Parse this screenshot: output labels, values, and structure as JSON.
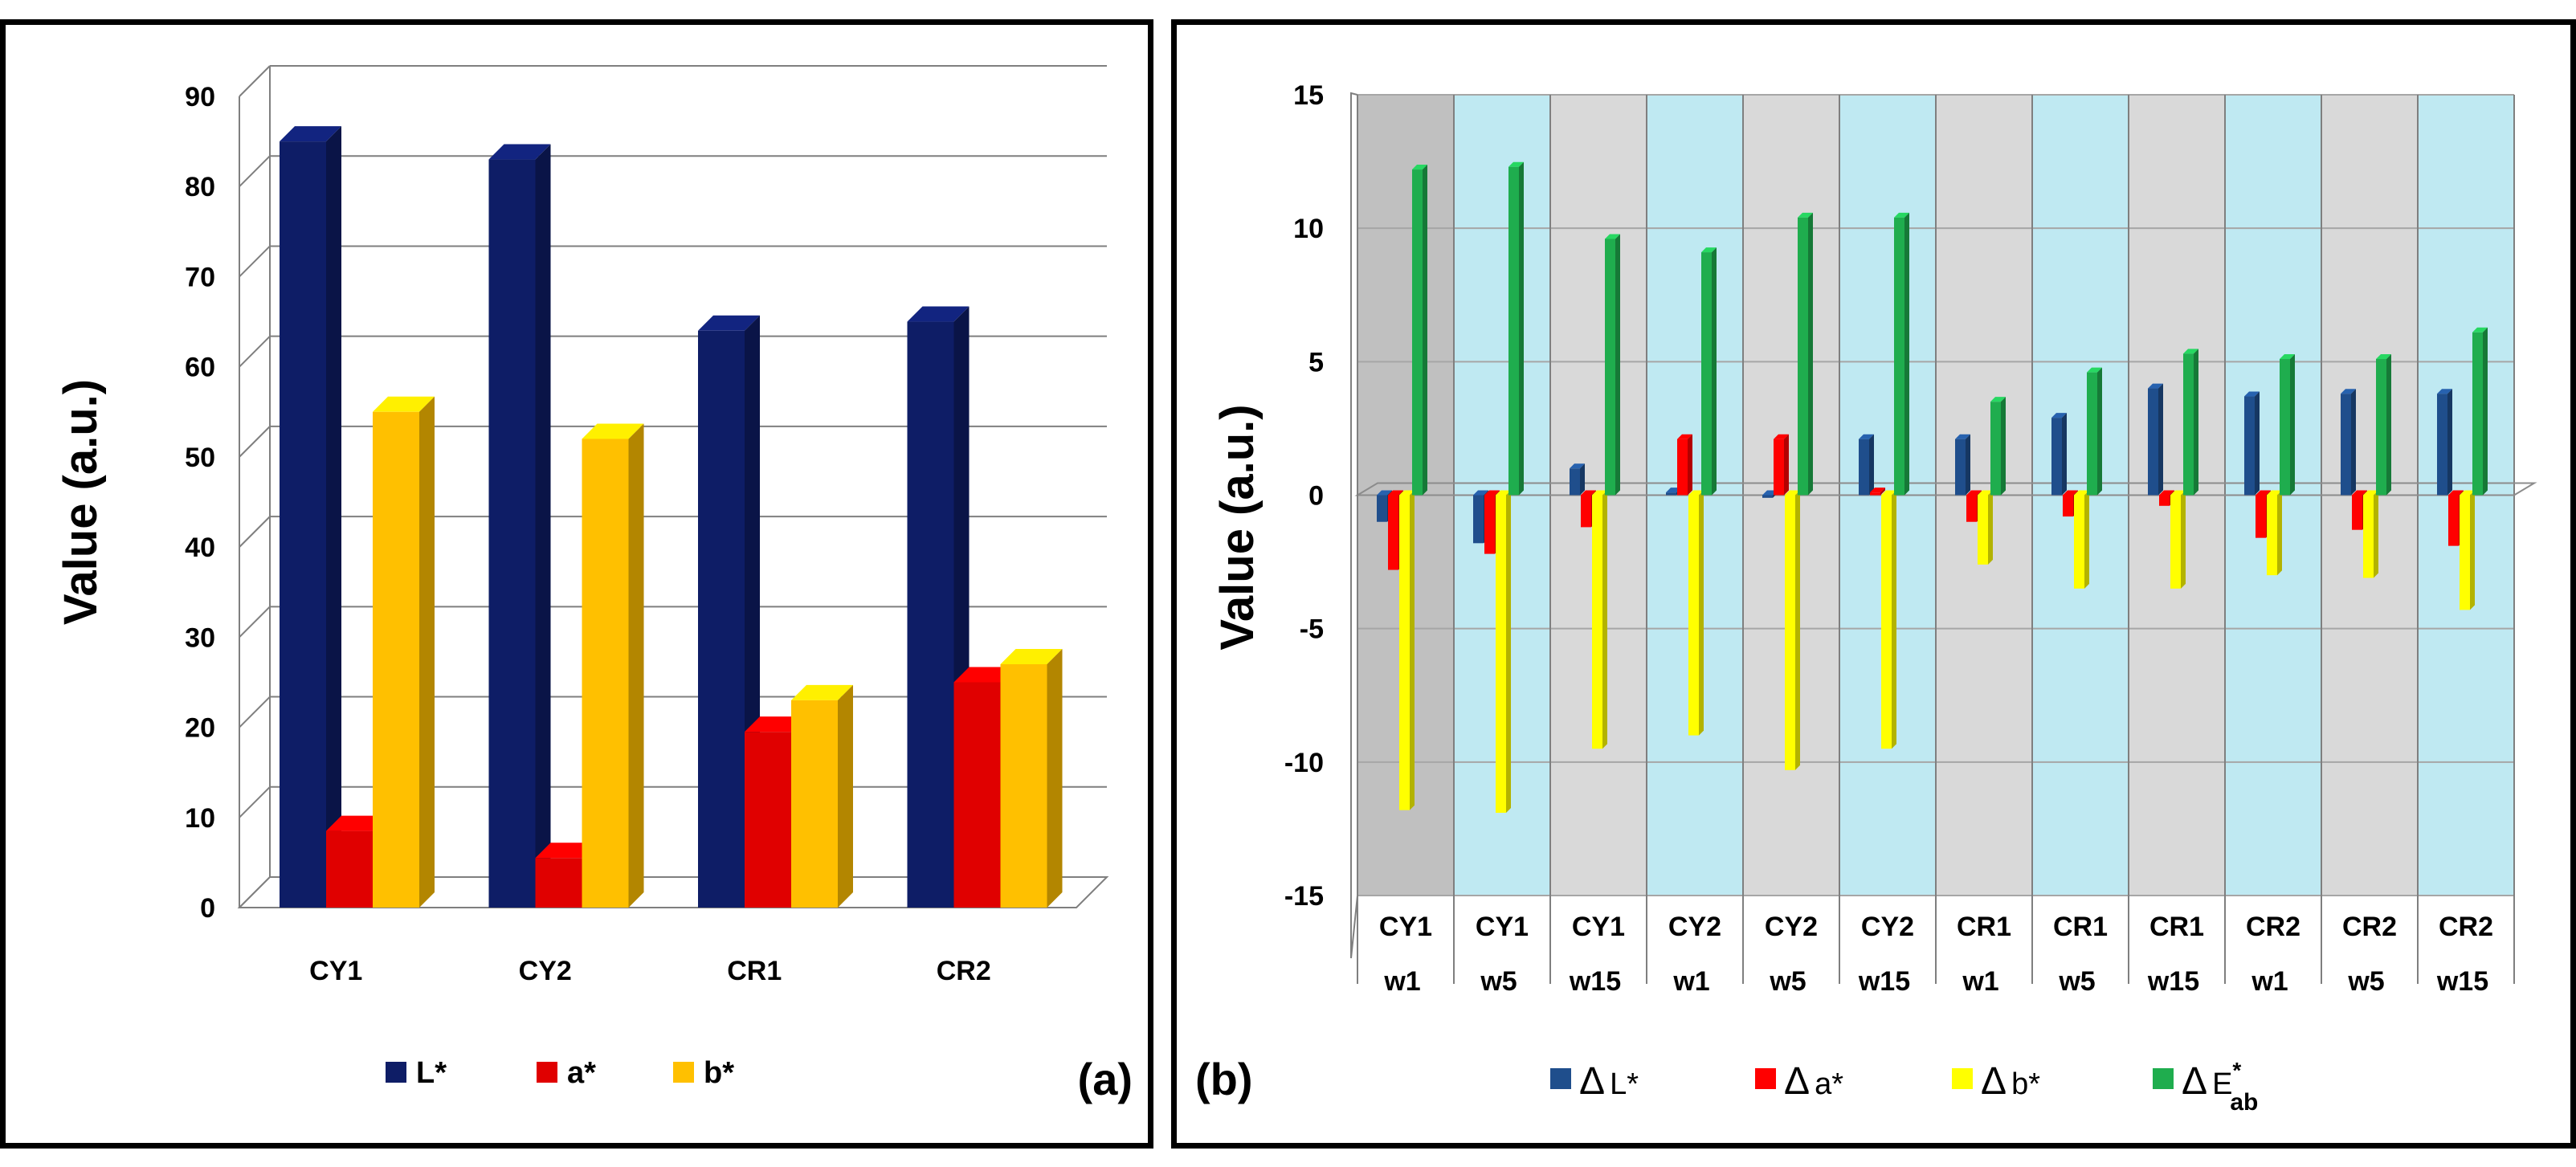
{
  "chart_data": [
    {
      "id": "a",
      "type": "bar",
      "panel_label": "(a)",
      "title": "",
      "xlabel": "",
      "ylabel": "Value (a.u.)",
      "ylim": [
        0,
        90
      ],
      "yticks": [
        0,
        10,
        20,
        30,
        40,
        50,
        60,
        70,
        80,
        90
      ],
      "categories": [
        "CY1",
        "CY2",
        "CR1",
        "CR2"
      ],
      "series": [
        {
          "name": "L*",
          "color": "#0e1d66",
          "values": [
            85,
            83,
            64,
            65
          ]
        },
        {
          "name": "a*",
          "color": "#e00000",
          "values": [
            8.5,
            5.5,
            19.5,
            25
          ]
        },
        {
          "name": "b*",
          "color": "#ffc000",
          "values": [
            55,
            52,
            23,
            27
          ]
        }
      ],
      "legend": "bottom",
      "grid": true
    },
    {
      "id": "b",
      "type": "bar",
      "panel_label": "(b)",
      "title": "",
      "xlabel": "",
      "ylabel": "Value (a.u.)",
      "ylim": [
        -15,
        15
      ],
      "yticks": [
        15,
        10,
        5,
        0,
        -5,
        -10,
        -15
      ],
      "categories_top": [
        "CY1",
        "CY1",
        "CY1",
        "CY2",
        "CY2",
        "CY2",
        "CR1",
        "CR1",
        "CR1",
        "CR2",
        "CR2",
        "CR2"
      ],
      "categories_bottom": [
        "w1",
        "w5",
        "w15",
        "w1",
        "w5",
        "w15",
        "w1",
        "w5",
        "w15",
        "w1",
        "w5",
        "w15"
      ],
      "band_colors": [
        "#c0c0c0",
        "#bfe9f2",
        "#d9d9d9",
        "#bfe9f2",
        "#d9d9d9",
        "#bfe9f2",
        "#d9d9d9",
        "#bfe9f2",
        "#d9d9d9",
        "#bfe9f2",
        "#d9d9d9",
        "#bfe9f2"
      ],
      "series": [
        {
          "name": "ΔL*",
          "delta": "Δ",
          "label": "L*",
          "color": "#1f4e8c",
          "values": [
            -1,
            -1.8,
            1,
            0.1,
            -0.1,
            2.1,
            2.1,
            2.9,
            4,
            3.7,
            3.8,
            3.8
          ]
        },
        {
          "name": "Δa*",
          "delta": "Δ",
          "label": "a*",
          "color": "#ff0000",
          "values": [
            -2.8,
            -2.2,
            -1.2,
            2.1,
            2.1,
            0.1,
            -1,
            -0.8,
            -0.4,
            -1.6,
            -1.3,
            -1.9
          ]
        },
        {
          "name": "Δb*",
          "delta": "Δ",
          "label": "b*",
          "color": "#ffff00",
          "values": [
            -11.8,
            -11.9,
            -9.5,
            -9,
            -10.3,
            -9.5,
            -2.6,
            -3.5,
            -3.5,
            -3,
            -3.1,
            -4.3
          ]
        },
        {
          "name": "ΔE*ab",
          "delta": "Δ",
          "label": "E",
          "sup": "*",
          "sub": "ab",
          "color": "#1fad4e",
          "values": [
            12.2,
            12.3,
            9.6,
            9.1,
            10.4,
            10.4,
            3.5,
            4.6,
            5.3,
            5.1,
            5.1,
            6.1
          ]
        }
      ],
      "legend": "bottom",
      "grid": true
    }
  ]
}
